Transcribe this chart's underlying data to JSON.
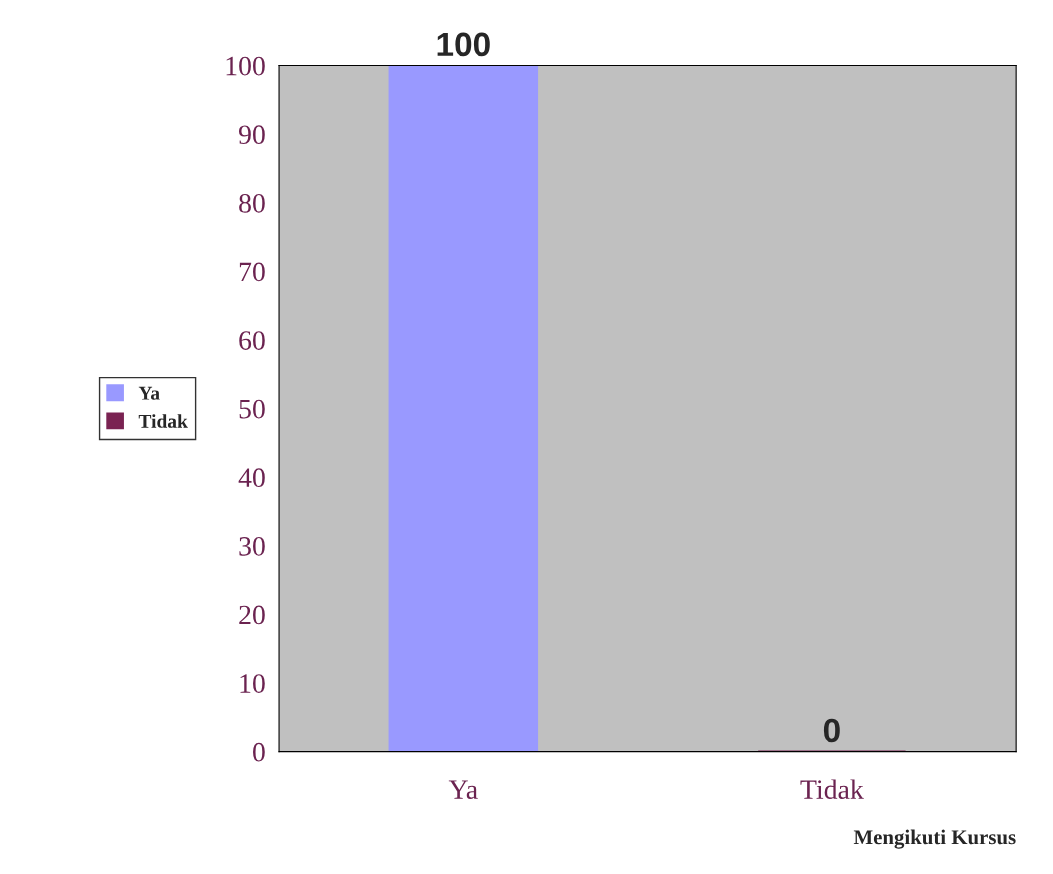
{
  "chart_data": {
    "type": "bar",
    "xlabel": "Mengikuti Kursus",
    "categories": [
      "Ya",
      "Tidak"
    ],
    "series": [
      {
        "name": "Ya",
        "color": "#9999ff",
        "values": [
          100,
          null
        ]
      },
      {
        "name": "Tidak",
        "color": "#7a2352",
        "values": [
          null,
          0
        ]
      }
    ],
    "ylim": [
      0,
      100
    ],
    "yticks": [
      0,
      10,
      20,
      30,
      40,
      50,
      60,
      70,
      80,
      90,
      100
    ],
    "data_labels": true,
    "grid": false,
    "legend": "left"
  }
}
